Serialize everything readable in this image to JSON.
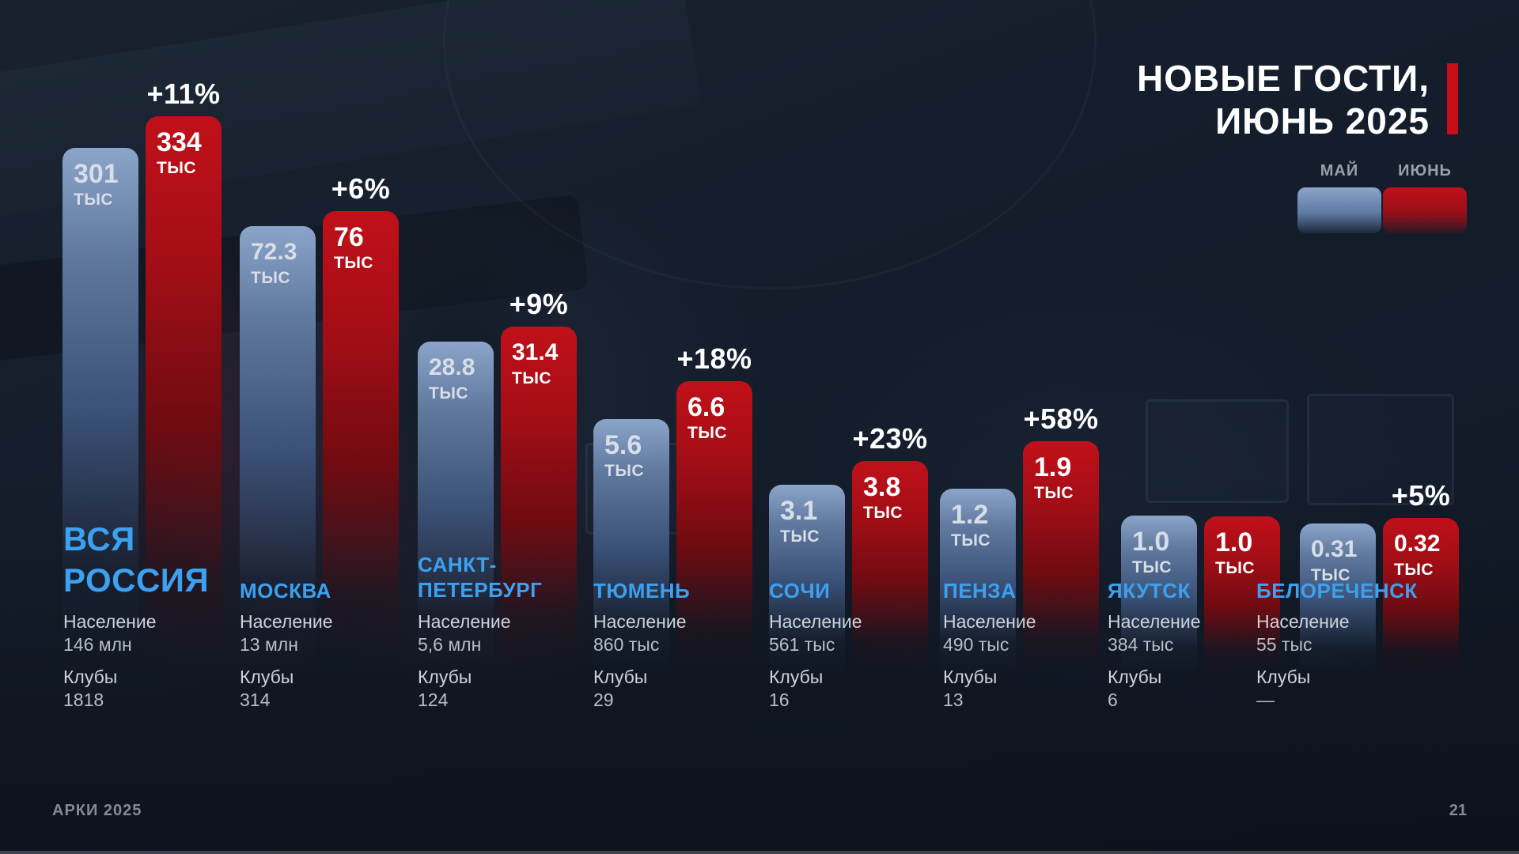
{
  "title": {
    "line1": "НОВЫЕ ГОСТИ,",
    "line2": "ИЮНЬ 2025"
  },
  "legend": {
    "may_label": "МАЙ",
    "june_label": "ИЮНЬ"
  },
  "labels": {
    "population": "Население",
    "clubs": "Клубы"
  },
  "footer": {
    "brand": "АРКИ 2025",
    "page_number": "21"
  },
  "colors": {
    "background": "#141D2B",
    "may_bar": "#8BA4C9",
    "june_bar": "#C0111A",
    "city_name": "#3BA1F0",
    "title_accent": "#C70D17",
    "info_text": "#C5CAD2",
    "footer_text": "#828A95"
  },
  "chart_data": {
    "type": "bar",
    "title": "НОВЫЕ ГОСТИ, ИЮНЬ 2025",
    "series_labels": [
      "МАЙ",
      "ИЮНЬ"
    ],
    "unit_bar": "ТЫС",
    "unit_meaning": "тысяч новых гостей",
    "legend_position": "top-right",
    "grid": false,
    "cities": [
      {
        "name": "ВСЯ РОССИЯ",
        "name_lines": [
          "ВСЯ",
          "РОССИЯ"
        ],
        "may": 301,
        "june": 334,
        "may_label": "301",
        "june_label": "334",
        "change": "+11%",
        "population": "146 млн",
        "clubs": "1818"
      },
      {
        "name": "МОСКВА",
        "may": 72.3,
        "june": 76,
        "may_label": "72.3",
        "june_label": "76",
        "change": "+6%",
        "population": "13 млн",
        "clubs": "314"
      },
      {
        "name": "САНКТ-ПЕТЕРБУРГ",
        "name_lines": [
          "САНКТ-",
          "ПЕТЕРБУРГ"
        ],
        "may": 28.8,
        "june": 31.4,
        "may_label": "28.8",
        "june_label": "31.4",
        "change": "+9%",
        "population": "5,6 млн",
        "clubs": "124"
      },
      {
        "name": "ТЮМЕНЬ",
        "may": 5.6,
        "june": 6.6,
        "may_label": "5.6",
        "june_label": "6.6",
        "change": "+18%",
        "population": "860 тыс",
        "clubs": "29"
      },
      {
        "name": "СОЧИ",
        "may": 3.1,
        "june": 3.8,
        "may_label": "3.1",
        "june_label": "3.8",
        "change": "+23%",
        "population": "561 тыс",
        "clubs": "16"
      },
      {
        "name": "ПЕНЗА",
        "may": 1.2,
        "june": 1.9,
        "may_label": "1.2",
        "june_label": "1.9",
        "change": "+58%",
        "population": "490 тыс",
        "clubs": "13"
      },
      {
        "name": "ЯКУТСК",
        "may": 1.0,
        "june": 1.0,
        "may_label": "1.0",
        "june_label": "1.0",
        "change": null,
        "population": "384 тыс",
        "clubs": "6"
      },
      {
        "name": "БЕЛОРЕЧЕНСК",
        "may": 0.31,
        "june": 0.32,
        "may_label": "0.31",
        "june_label": "0.32",
        "change": "+5%",
        "population": "55 тыс",
        "clubs": "—"
      }
    ]
  }
}
